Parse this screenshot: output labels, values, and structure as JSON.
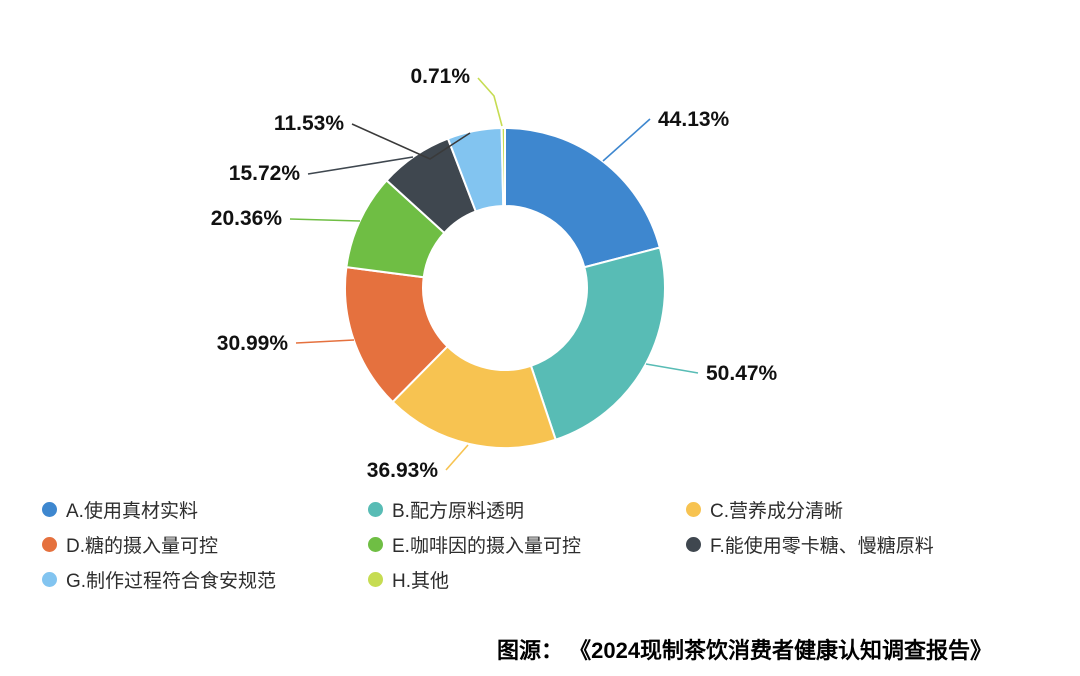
{
  "chart_data": {
    "type": "pie",
    "subtype": "donut",
    "title": "",
    "legend_position": "bottom",
    "start_angle_deg": 0,
    "direction": "clockwise",
    "value_suffix": "%",
    "series": [
      {
        "label": "A.使用真材实料",
        "value": 44.13,
        "color": "#3e87cf"
      },
      {
        "label": "B.配方原料透明",
        "value": 50.47,
        "color": "#58bcb5"
      },
      {
        "label": "C.营养成分清晰",
        "value": 36.93,
        "color": "#f7c351"
      },
      {
        "label": "D.糖的摄入量可控",
        "value": 30.99,
        "color": "#e5713e"
      },
      {
        "label": "E.咖啡因的摄入量可控",
        "value": 20.36,
        "color": "#6fbe44"
      },
      {
        "label": "F.能使用零卡糖、慢糖原料",
        "value": 15.72,
        "color": "#3f474f"
      },
      {
        "label": "G.制作过程符合食安规范",
        "value": 11.53,
        "color": "#82c4f0"
      },
      {
        "label": "H.其他",
        "value": 0.71,
        "color": "#c6dc52"
      }
    ]
  },
  "source": {
    "text": "图源： 《2024现制茶饮消费者健康认知调查报告》"
  }
}
